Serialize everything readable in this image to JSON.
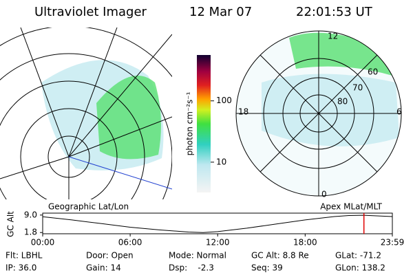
{
  "header": {
    "title": "Ultraviolet Imager",
    "date": "12 Mar 07",
    "time": "22:01:53 UT"
  },
  "polar_plot": {
    "mlt_labels": [
      "12",
      "18",
      "6",
      "0"
    ],
    "mlat_labels": [
      "60",
      "70",
      "80"
    ]
  },
  "chart_data": [
    {
      "type": "colorbar",
      "ylabel": "photon cm⁻²s⁻¹",
      "log_scale": true,
      "ylim": [
        3.2,
        560
      ],
      "yticks": [
        10,
        100
      ]
    },
    {
      "type": "line",
      "ylabel": "GC Alt",
      "left_title": "Geographic Lat/Lon",
      "right_title": "Apex MLat/MLT",
      "x": [
        0,
        2,
        4,
        6,
        8,
        10,
        11,
        12,
        14,
        16,
        18,
        20,
        21,
        22,
        23.98
      ],
      "values": [
        8.3,
        7.0,
        5.5,
        4.0,
        2.9,
        2.0,
        1.8,
        2.2,
        3.6,
        5.3,
        7.0,
        8.4,
        8.8,
        8.9,
        8.4
      ],
      "color": "#000000",
      "marker_time": 22.03,
      "marker_color": "#e00000",
      "xlim": [
        0,
        23.98
      ],
      "ylim": [
        1.3,
        9.8
      ],
      "xticks": [
        {
          "value": 0,
          "label": "00:00"
        },
        {
          "value": 6,
          "label": "06:00"
        },
        {
          "value": 12,
          "label": "12:00"
        },
        {
          "value": 18,
          "label": "18:00"
        },
        {
          "value": 23.98,
          "label": "23:59"
        }
      ],
      "yticks": [
        {
          "value": 9.0,
          "label": "9.0"
        },
        1.8
      ]
    }
  ],
  "footer": {
    "rows": [
      [
        "Flt: LBHL",
        "Door: Open",
        "Mode: Normal",
        "GC Alt: 8.8 Re",
        "GLat: -71.2"
      ],
      [
        "IP: 36.0",
        "Gain: 14",
        "Dsp:    -2.3",
        "Seq: 39",
        "GLon: 138.2"
      ]
    ]
  }
}
